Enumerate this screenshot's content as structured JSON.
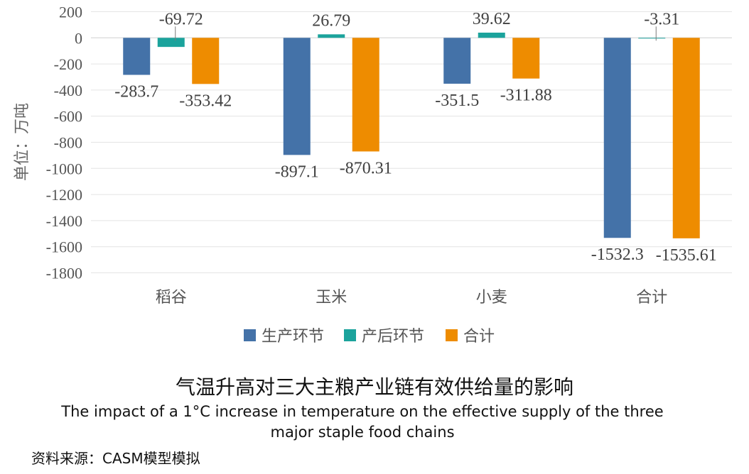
{
  "chart_data": {
    "type": "bar",
    "categories": [
      "稻谷",
      "玉米",
      "小麦",
      "合计"
    ],
    "series": [
      {
        "name": "生产环节",
        "color": "#4472A8",
        "values": [
          -283.7,
          -897.1,
          -351.5,
          -1532.3
        ],
        "labels": [
          "-283.7",
          "-897.1",
          "-351.5",
          "-1532.3"
        ]
      },
      {
        "name": "产后环节",
        "color": "#1BA39C",
        "values": [
          -69.72,
          26.79,
          39.62,
          -3.31
        ],
        "labels": [
          "-69.72",
          "26.79",
          "39.62",
          "-3.31"
        ]
      },
      {
        "name": "合计",
        "color": "#EE8C00",
        "values": [
          -353.42,
          -870.31,
          -311.88,
          -1535.61
        ],
        "labels": [
          "-353.42",
          "-870.31",
          "-311.88",
          "-1535.61"
        ]
      }
    ],
    "ylabel": "单位：万吨",
    "ylim": [
      -1800,
      200
    ],
    "yticks": [
      200,
      0,
      -200,
      -400,
      -600,
      -800,
      -1000,
      -1200,
      -1400,
      -1600,
      -1800
    ],
    "grid": true,
    "legend_position": "bottom"
  },
  "title_cn": "气温升高对三大主粮产业链有效供给量的影响",
  "title_en": "The impact of a 1°C increase in temperature on the effective supply of the three major staple food chains",
  "source": "资料来源：CASM模型模拟"
}
